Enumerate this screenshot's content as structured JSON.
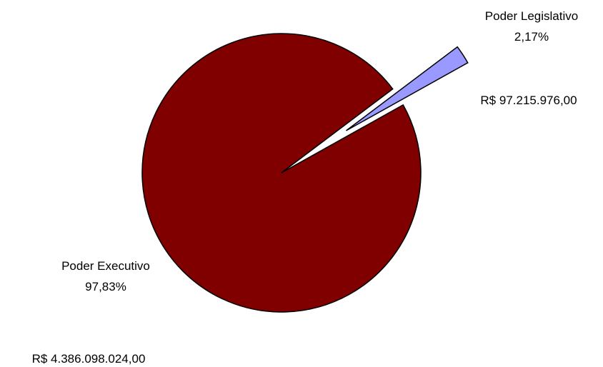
{
  "chart_data": {
    "type": "pie",
    "slices": [
      {
        "name": "Poder Executivo",
        "percent_label": "97,83%",
        "value_label": "R$ 4.386.098.024,00",
        "value": 4386098024.0,
        "percent": 97.83,
        "color": "#800000",
        "exploded": false
      },
      {
        "name": "Poder Legislativo",
        "percent_label": "2,17%",
        "value_label": "R$ 97.215.976,00",
        "value": 97215976.0,
        "percent": 2.17,
        "color": "#9999ff",
        "exploded": true
      }
    ]
  }
}
